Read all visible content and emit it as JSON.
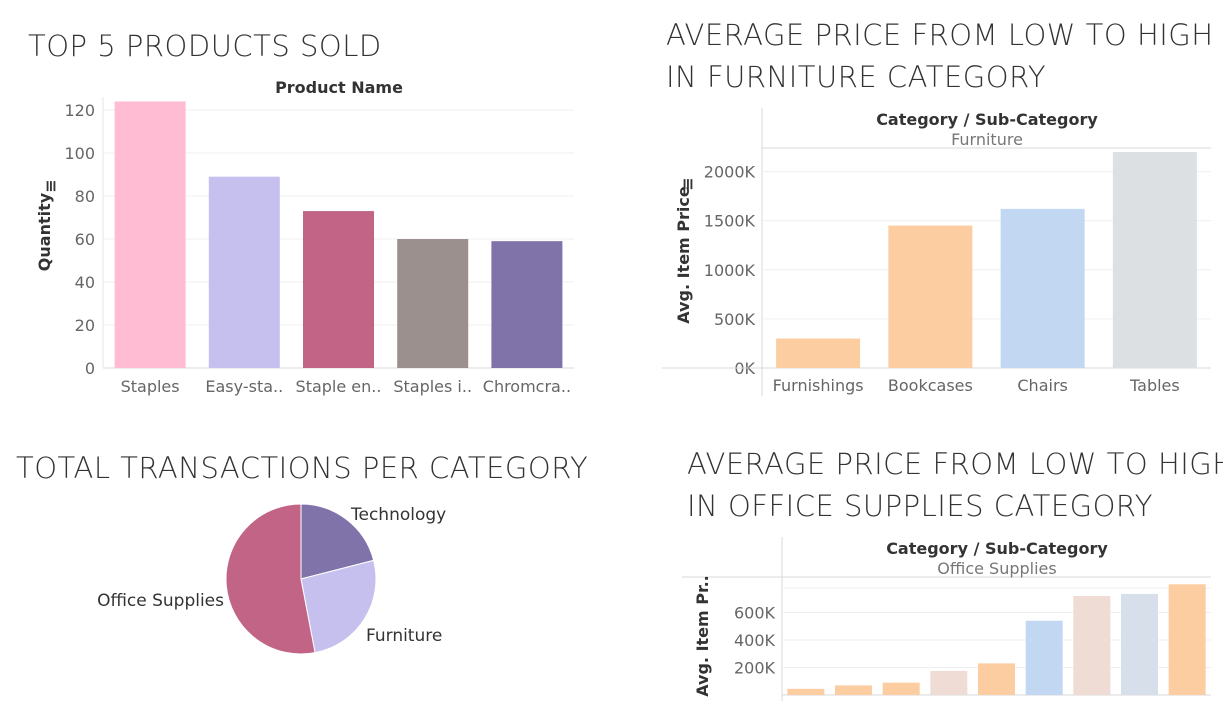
{
  "titles": {
    "top5": "TOP 5 PRODUCTS SOLD",
    "furniture_line1": "AVERAGE PRICE FROM LOW TO HIGH",
    "furniture_line2": "IN FURNITURE CATEGORY",
    "transactions": "TOTAL TRANSACTIONS PER CATEGORY",
    "office_line1": "AVERAGE PRICE FROM LOW TO HIGH",
    "office_line2": "IN OFFICE SUPPLIES CATEGORY"
  },
  "chart_data": [
    {
      "type": "bar",
      "title": "TOP 5 PRODUCTS SOLD",
      "column_header": "Product Name",
      "ylabel": "Quantity",
      "categories": [
        "Staples",
        "Easy-sta..",
        "Staple en..",
        "Staples i..",
        "Chromcra.."
      ],
      "values": [
        124,
        89,
        73,
        60,
        59
      ],
      "colors": [
        "#ffbcd3",
        "#c6c0ef",
        "#c26486",
        "#9b908d",
        "#8073aa"
      ],
      "yticks": [
        0,
        20,
        40,
        60,
        80,
        100,
        120
      ],
      "ylim": [
        0,
        127
      ],
      "grid": true
    },
    {
      "type": "bar",
      "title": "AVERAGE PRICE FROM LOW TO HIGH IN FURNITURE CATEGORY",
      "header": "Category / Sub-Category",
      "category": "Furniture",
      "ylabel": "Avg. Item Price",
      "categories": [
        "Furnishings",
        "Bookcases",
        "Chairs",
        "Tables"
      ],
      "values": [
        300,
        1450,
        1620,
        2200
      ],
      "colors": [
        "#fccda1",
        "#fccda1",
        "#c2d7f2",
        "#dde0e3"
      ],
      "yticks": [
        0,
        500,
        1000,
        1500,
        2000
      ],
      "ytick_labels": [
        "0K",
        "500K",
        "1000K",
        "1500K",
        "2000K"
      ],
      "ylim": [
        0,
        2240
      ],
      "grid": true
    },
    {
      "type": "pie",
      "title": "TOTAL TRANSACTIONS PER CATEGORY",
      "slices": [
        {
          "label": "Technology",
          "value": 21,
          "color": "#8073aa"
        },
        {
          "label": "Furniture",
          "value": 26,
          "color": "#c6c0ef"
        },
        {
          "label": "Office Supplies",
          "value": 53,
          "color": "#c26486"
        }
      ]
    },
    {
      "type": "bar",
      "title": "AVERAGE PRICE FROM LOW TO HIGH IN OFFICE SUPPLIES CATEGORY",
      "header": "Category / Sub-Category",
      "category": "Office Supplies",
      "ylabel": "Avg. Item Pr..",
      "values": [
        45,
        70,
        90,
        175,
        230,
        540,
        720,
        735,
        805
      ],
      "colors": [
        "#fccda1",
        "#fccda1",
        "#fccda1",
        "#efdcd4",
        "#fccda1",
        "#c2d7f2",
        "#efdcd4",
        "#d7e0ea",
        "#fccda1"
      ],
      "yticks": [
        200,
        400,
        600
      ],
      "ytick_labels": [
        "200K",
        "400K",
        "600K"
      ],
      "grid": true
    }
  ]
}
